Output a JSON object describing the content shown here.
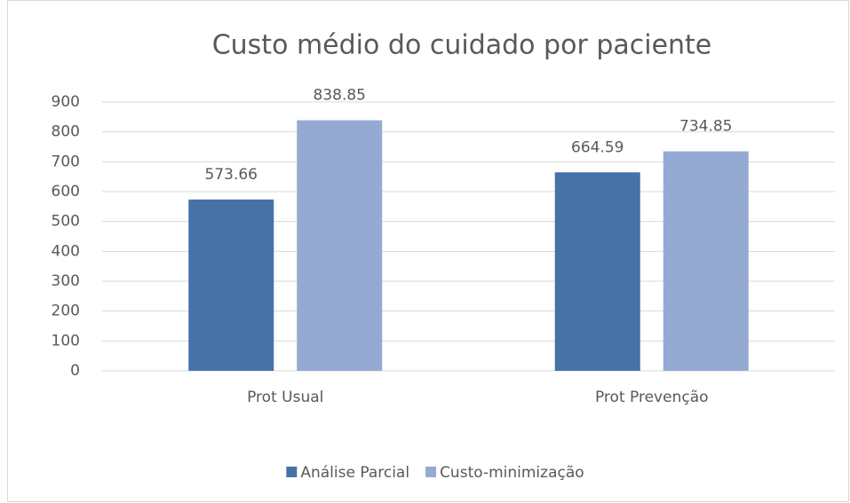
{
  "chart_data": {
    "type": "bar",
    "title": "Custo médio do cuidado por paciente",
    "categories": [
      "Prot Usual",
      "Prot Prevenção"
    ],
    "series": [
      {
        "name": "Análise Parcial",
        "color": "#4672a8",
        "values": [
          573.66,
          664.59
        ]
      },
      {
        "name": "Custo-minimização",
        "color": "#95aad3",
        "values": [
          838.85,
          734.85
        ]
      }
    ],
    "ylim": [
      0,
      900
    ],
    "yticks": [
      0,
      100,
      200,
      300,
      400,
      500,
      600,
      700,
      800,
      900
    ],
    "grid": true,
    "legend": "bottom",
    "data_labels": true
  }
}
